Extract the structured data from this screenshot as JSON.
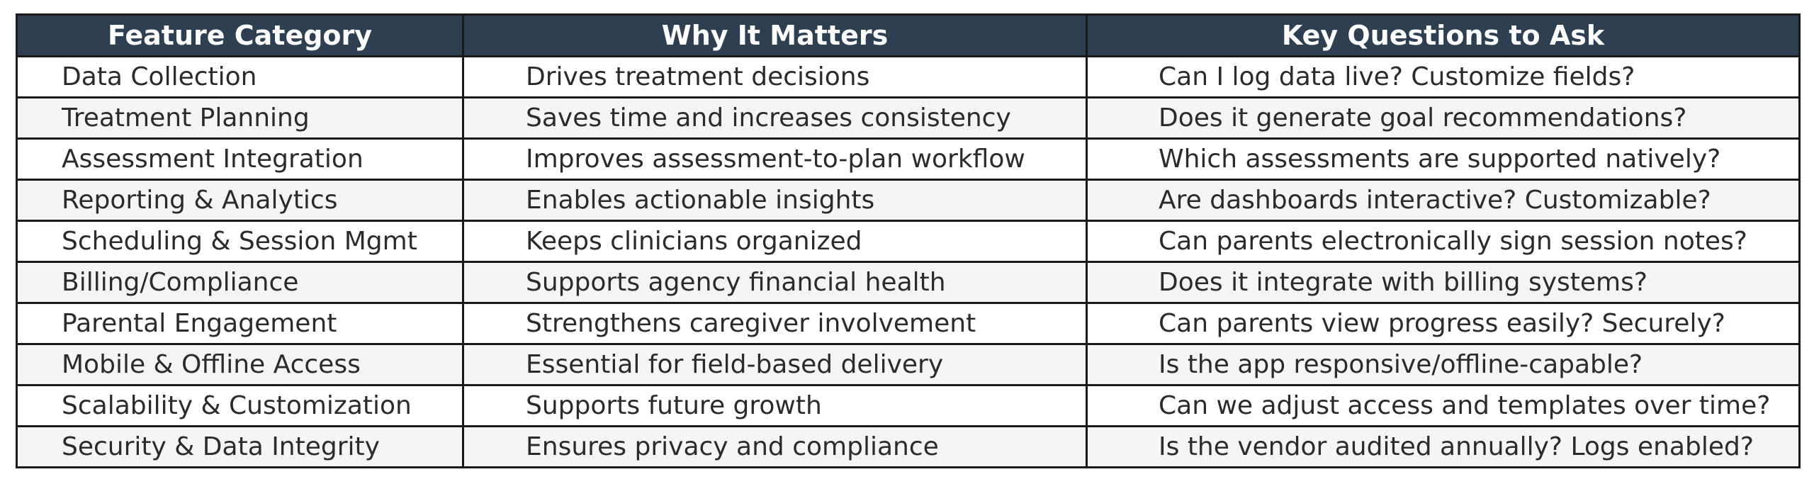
{
  "table": {
    "headers": [
      "Feature Category",
      "Why It Matters",
      "Key Questions to Ask"
    ],
    "rows": [
      [
        "Data Collection",
        "Drives treatment decisions",
        "Can I log data live? Customize fields?"
      ],
      [
        "Treatment Planning",
        "Saves time and increases consistency",
        "Does it generate goal recommendations?"
      ],
      [
        "Assessment Integration",
        "Improves assessment-to-plan workflow",
        "Which assessments are supported natively?"
      ],
      [
        "Reporting & Analytics",
        "Enables actionable insights",
        "Are dashboards interactive? Customizable?"
      ],
      [
        "Scheduling & Session Mgmt",
        "Keeps clinicians organized",
        "Can parents electronically sign session notes?"
      ],
      [
        "Billing/Compliance",
        "Supports agency financial health",
        "Does it integrate with billing systems?"
      ],
      [
        "Parental Engagement",
        "Strengthens caregiver involvement",
        "Can parents view progress easily? Securely?"
      ],
      [
        "Mobile & Offline Access",
        "Essential for field-based delivery",
        "Is the app responsive/offline-capable?"
      ],
      [
        "Scalability & Customization",
        "Supports future growth",
        "Can we adjust access and templates over time?"
      ],
      [
        "Security & Data Integrity",
        "Ensures privacy and compliance",
        "Is the vendor audited annually? Logs enabled?"
      ]
    ]
  },
  "colors": {
    "header_bg": "#2e3f52",
    "header_text": "#ffffff",
    "row_alt_bg": "#f4f5f7",
    "border": "#1a1a1a"
  }
}
